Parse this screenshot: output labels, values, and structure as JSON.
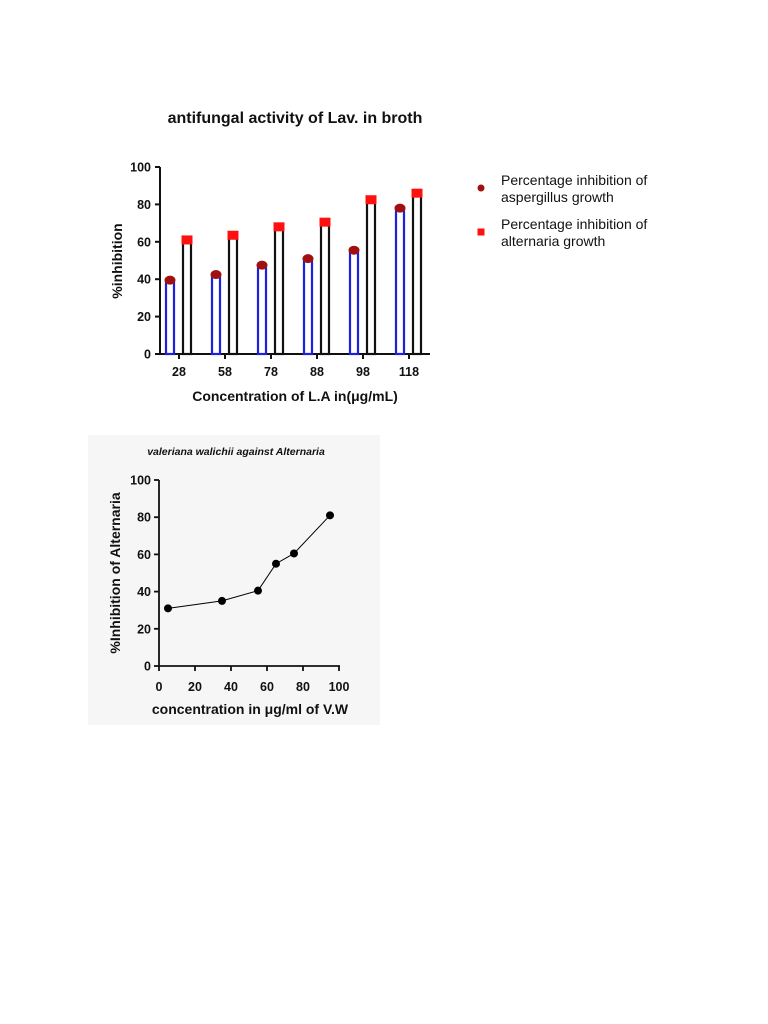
{
  "chart_data": [
    {
      "type": "bar",
      "title": "antifungal activity of Lav. in broth",
      "xlabel": "Concentration of L.A in(μg/mL)",
      "ylabel": "%inhibition",
      "ylim": [
        0,
        100
      ],
      "yticks": [
        0,
        20,
        40,
        60,
        80,
        100
      ],
      "categories": [
        "28",
        "58",
        "78",
        "88",
        "98",
        "118"
      ],
      "legend_position": "right",
      "series": [
        {
          "name": "Percentage inhibition of aspergillus growth",
          "name_lines": [
            "Percentage inhibition of",
            "aspergillus growth"
          ],
          "values": [
            39.5,
            42.5,
            47.5,
            51,
            55.5,
            78
          ],
          "bar_color": "#1f1fe0",
          "marker": "circle",
          "marker_color": "#a01010"
        },
        {
          "name": "Percentage inhibition of alternaria growth",
          "name_lines": [
            "Percentage inhibition of",
            "alternaria growth"
          ],
          "values": [
            61,
            63.5,
            68,
            70.5,
            82.5,
            86
          ],
          "bar_color": "#111111",
          "marker": "square",
          "marker_color": "#ff1010"
        }
      ]
    },
    {
      "type": "line",
      "title": "valeriana walichii against Alternaria",
      "xlabel": "concentration in μg/ml of V.W",
      "ylabel": "%Inhibition of Alternaria",
      "xlim": [
        0,
        100
      ],
      "ylim": [
        0,
        100
      ],
      "xticks": [
        0,
        20,
        40,
        60,
        80,
        100
      ],
      "yticks": [
        0,
        20,
        40,
        60,
        80,
        100
      ],
      "series": [
        {
          "x": [
            5,
            35,
            55,
            65,
            75,
            95
          ],
          "y": [
            31,
            35,
            40.5,
            55,
            60.5,
            81
          ],
          "color": "#000000"
        }
      ]
    }
  ]
}
